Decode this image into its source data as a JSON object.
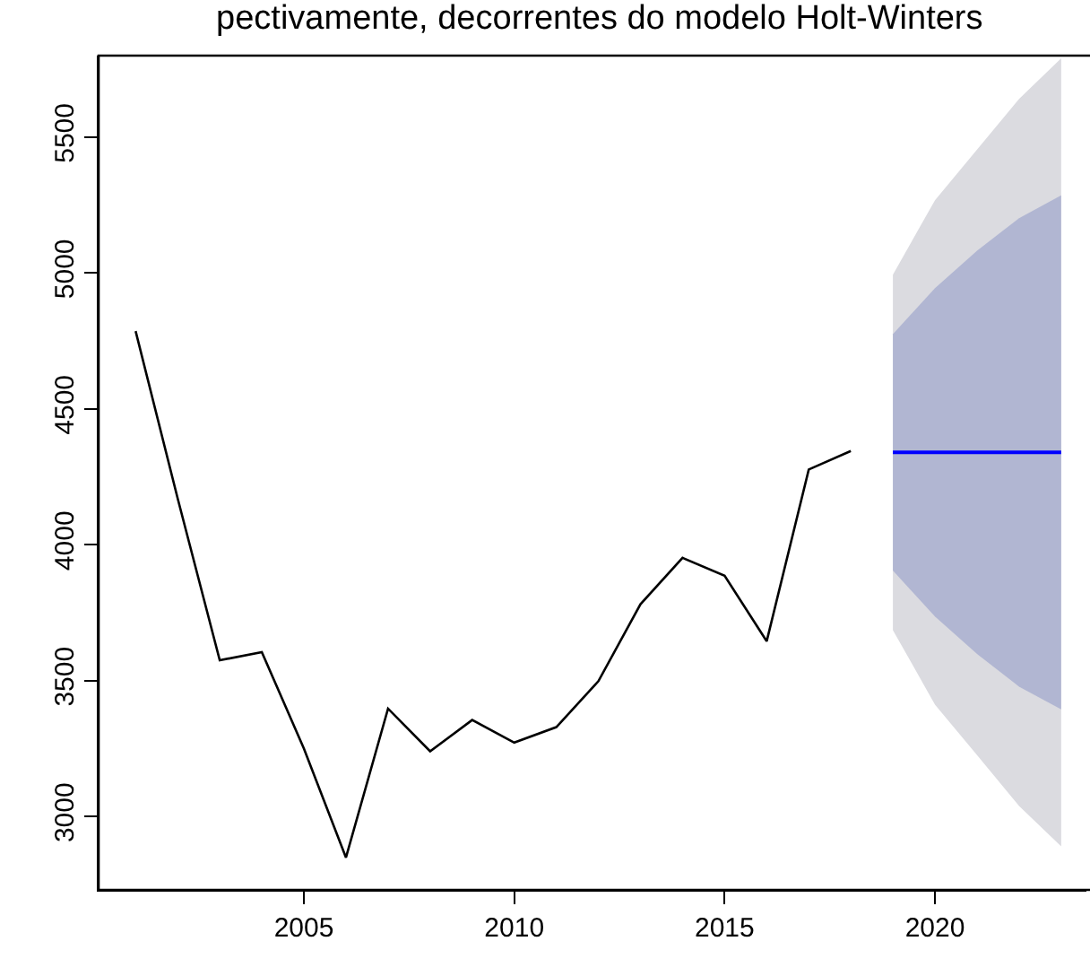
{
  "chart_data": {
    "type": "line",
    "title": "pectivamente, decorrentes do modelo Holt-Winters",
    "xlim": [
      2000.12,
      2023.6
    ],
    "ylim": [
      2730,
      5800
    ],
    "xticks": [
      2005,
      2010,
      2015,
      2020
    ],
    "yticks": [
      3000,
      3500,
      4000,
      4500,
      5000,
      5500
    ],
    "series": [
      {
        "type": "area",
        "color": "#dbdbe0",
        "x": [
          2019,
          2020,
          2021,
          2022,
          2023
        ],
        "values": [
          null,
          null,
          null,
          null,
          null
        ],
        "lower": [
          3686,
          3412,
          3226,
          3039,
          2890
        ],
        "upper": [
          4994,
          5268,
          5454,
          5641,
          5790
        ]
      },
      {
        "type": "area",
        "color": "#b1b6d2",
        "x": [
          2019,
          2020,
          2021,
          2022,
          2023
        ],
        "values": [
          null,
          null,
          null,
          null,
          null
        ],
        "lower": [
          3905,
          3736,
          3598,
          3478,
          3394
        ],
        "upper": [
          4775,
          4944,
          5082,
          5202,
          5286
        ]
      },
      {
        "color": "#000000",
        "x": [
          2001,
          2002,
          2003,
          2004,
          2005,
          2006,
          2007,
          2008,
          2009,
          2010,
          2011,
          2012,
          2013,
          2014,
          2015,
          2016,
          2017,
          2018
        ],
        "values": [
          4786,
          4170,
          3575,
          3605,
          3250,
          2849,
          3397,
          3240,
          3355,
          3272,
          3329,
          3498,
          3781,
          3952,
          3886,
          3645,
          4277,
          4345
        ]
      },
      {
        "color": "#0000ff",
        "x": [
          2019,
          2020,
          2021,
          2022,
          2023
        ],
        "values": [
          4340,
          4340,
          4340,
          4340,
          4340
        ]
      }
    ]
  }
}
